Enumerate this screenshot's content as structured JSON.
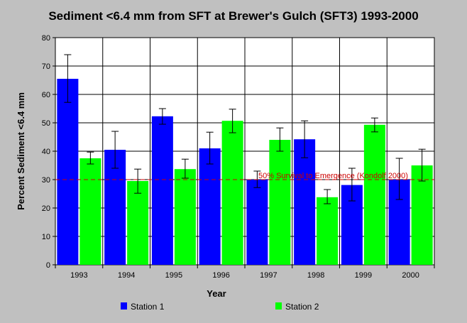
{
  "chart_data": {
    "type": "bar",
    "title": "Sediment <6.4 mm from SFT at Brewer's Gulch (SFT3) 1993-2000",
    "xlabel": "Year",
    "ylabel": "Percent Sediment <6.4 mm",
    "ylim": [
      0,
      80
    ],
    "yticks": [
      0,
      10,
      20,
      30,
      40,
      50,
      60,
      70,
      80
    ],
    "grid": true,
    "legend_position": "bottom",
    "categories": [
      "1993",
      "1994",
      "1995",
      "1996",
      "1997",
      "1998",
      "1999",
      "2000"
    ],
    "series": [
      {
        "name": "Station 1",
        "color": "#0000ff",
        "values": [
          65.5,
          40.5,
          52.3,
          41.0,
          30.0,
          44.2,
          28.1,
          30.0
        ],
        "error_low": [
          57.2,
          34.0,
          49.5,
          35.5,
          27.2,
          37.7,
          22.5,
          23.0
        ],
        "error_high": [
          74.0,
          47.0,
          55.0,
          46.7,
          33.0,
          50.7,
          34.0,
          37.5
        ]
      },
      {
        "name": "Station 2",
        "color": "#00ff00",
        "values": [
          37.5,
          29.5,
          33.7,
          50.7,
          44.0,
          23.8,
          49.3,
          35.0
        ],
        "error_low": [
          35.5,
          25.2,
          30.5,
          46.5,
          40.0,
          21.5,
          46.8,
          29.5
        ],
        "error_high": [
          39.7,
          33.7,
          37.2,
          54.8,
          48.2,
          26.5,
          51.7,
          40.7
        ]
      }
    ],
    "reference_line": {
      "value": 30,
      "label": "50% Survival to Emergence (Kondolf 2000)",
      "color": "#cc0000"
    }
  }
}
